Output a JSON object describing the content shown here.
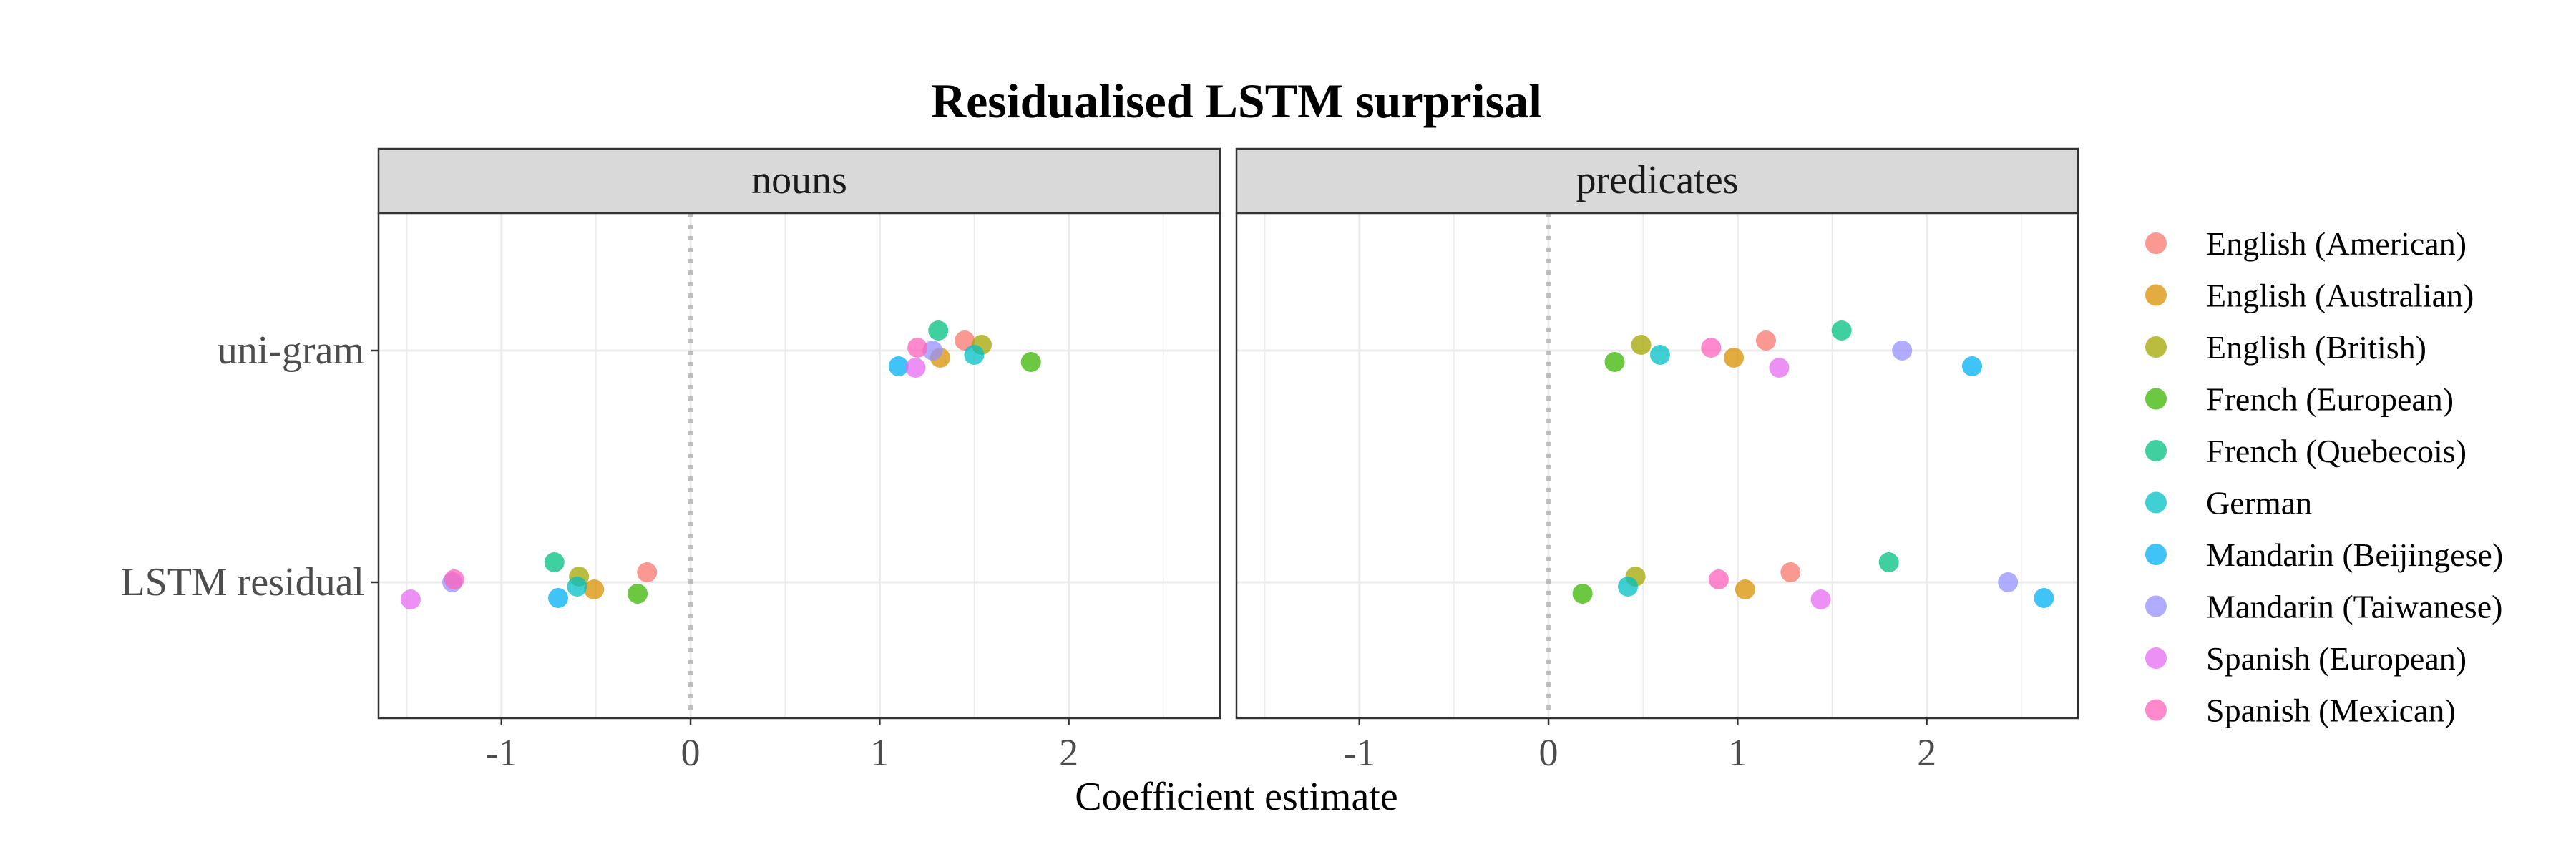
{
  "chart_data": {
    "type": "scatter",
    "title": "Residualised LSTM surprisal",
    "xlabel": "Coefficient estimate",
    "ylabel": "",
    "xlim": [
      -1.65,
      2.8
    ],
    "x_ticks": [
      -1,
      0,
      1,
      2
    ],
    "x_tick_labels": [
      "-1",
      "0",
      "1",
      "2"
    ],
    "categories": [
      "uni-gram",
      "LSTM residual"
    ],
    "reference_line_x": 0,
    "grid": true,
    "legend_position": "right",
    "facets": [
      {
        "label": "nouns",
        "points": [
          {
            "series": "English (American)",
            "category": "uni-gram",
            "x": 1.45
          },
          {
            "series": "English (Australian)",
            "category": "uni-gram",
            "x": 1.32
          },
          {
            "series": "English (British)",
            "category": "uni-gram",
            "x": 1.54
          },
          {
            "series": "French (European)",
            "category": "uni-gram",
            "x": 1.8
          },
          {
            "series": "French (Quebecois)",
            "category": "uni-gram",
            "x": 1.31
          },
          {
            "series": "German",
            "category": "uni-gram",
            "x": 1.5
          },
          {
            "series": "Mandarin (Beijingese)",
            "category": "uni-gram",
            "x": 1.1
          },
          {
            "series": "Mandarin (Taiwanese)",
            "category": "uni-gram",
            "x": 1.28
          },
          {
            "series": "Spanish (European)",
            "category": "uni-gram",
            "x": 1.19
          },
          {
            "series": "Spanish (Mexican)",
            "category": "uni-gram",
            "x": 1.2
          },
          {
            "series": "English (American)",
            "category": "LSTM residual",
            "x": -0.23
          },
          {
            "series": "English (Australian)",
            "category": "LSTM residual",
            "x": -0.51
          },
          {
            "series": "English (British)",
            "category": "LSTM residual",
            "x": -0.59
          },
          {
            "series": "French (European)",
            "category": "LSTM residual",
            "x": -0.28
          },
          {
            "series": "French (Quebecois)",
            "category": "LSTM residual",
            "x": -0.72
          },
          {
            "series": "German",
            "category": "LSTM residual",
            "x": -0.6
          },
          {
            "series": "Mandarin (Beijingese)",
            "category": "LSTM residual",
            "x": -0.7
          },
          {
            "series": "Mandarin (Taiwanese)",
            "category": "LSTM residual",
            "x": -1.26
          },
          {
            "series": "Spanish (European)",
            "category": "LSTM residual",
            "x": -1.48
          },
          {
            "series": "Spanish (Mexican)",
            "category": "LSTM residual",
            "x": -1.25
          }
        ]
      },
      {
        "label": "predicates",
        "points": [
          {
            "series": "English (American)",
            "category": "uni-gram",
            "x": 1.15
          },
          {
            "series": "English (Australian)",
            "category": "uni-gram",
            "x": 0.98
          },
          {
            "series": "English (British)",
            "category": "uni-gram",
            "x": 0.49
          },
          {
            "series": "French (European)",
            "category": "uni-gram",
            "x": 0.35
          },
          {
            "series": "French (Quebecois)",
            "category": "uni-gram",
            "x": 1.55
          },
          {
            "series": "German",
            "category": "uni-gram",
            "x": 0.59
          },
          {
            "series": "Mandarin (Beijingese)",
            "category": "uni-gram",
            "x": 2.24
          },
          {
            "series": "Mandarin (Taiwanese)",
            "category": "uni-gram",
            "x": 1.87
          },
          {
            "series": "Spanish (European)",
            "category": "uni-gram",
            "x": 1.22
          },
          {
            "series": "Spanish (Mexican)",
            "category": "uni-gram",
            "x": 0.86
          },
          {
            "series": "English (American)",
            "category": "LSTM residual",
            "x": 1.28
          },
          {
            "series": "English (Australian)",
            "category": "LSTM residual",
            "x": 1.04
          },
          {
            "series": "English (British)",
            "category": "LSTM residual",
            "x": 0.46
          },
          {
            "series": "French (European)",
            "category": "LSTM residual",
            "x": 0.18
          },
          {
            "series": "French (Quebecois)",
            "category": "LSTM residual",
            "x": 1.8
          },
          {
            "series": "German",
            "category": "LSTM residual",
            "x": 0.42
          },
          {
            "series": "Mandarin (Beijingese)",
            "category": "LSTM residual",
            "x": 2.62
          },
          {
            "series": "Mandarin (Taiwanese)",
            "category": "LSTM residual",
            "x": 2.43
          },
          {
            "series": "Spanish (European)",
            "category": "LSTM residual",
            "x": 1.44
          },
          {
            "series": "Spanish (Mexican)",
            "category": "LSTM residual",
            "x": 0.9
          }
        ]
      }
    ],
    "series": [
      {
        "name": "English (American)",
        "color": "#f8766d"
      },
      {
        "name": "English (Australian)",
        "color": "#d89000"
      },
      {
        "name": "English (British)",
        "color": "#a3a500"
      },
      {
        "name": "French (European)",
        "color": "#39b600"
      },
      {
        "name": "French (Quebecois)",
        "color": "#00bf7d"
      },
      {
        "name": "German",
        "color": "#00bfc4"
      },
      {
        "name": "Mandarin (Beijingese)",
        "color": "#00b0f6"
      },
      {
        "name": "Mandarin (Taiwanese)",
        "color": "#9590ff"
      },
      {
        "name": "Spanish (European)",
        "color": "#e76bf3"
      },
      {
        "name": "Spanish (Mexican)",
        "color": "#ff62bc"
      }
    ]
  }
}
